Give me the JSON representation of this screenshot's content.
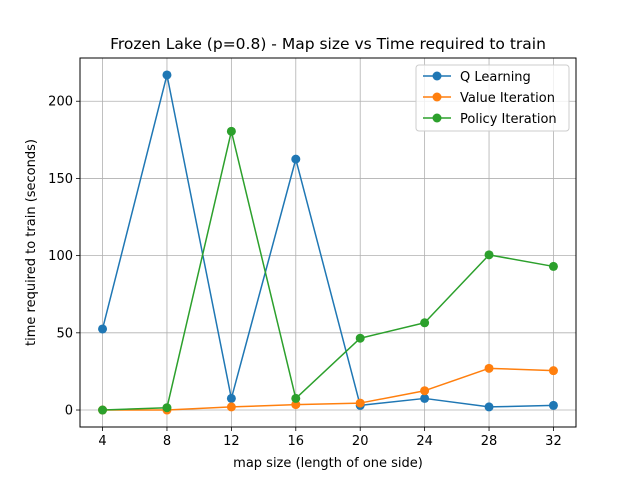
{
  "chart_data": {
    "type": "line",
    "title": "Frozen Lake (p=0.8) - Map size vs Time required to train",
    "xlabel": "map size (length of one side)",
    "ylabel": "time required to train (seconds)",
    "x": [
      4,
      8,
      12,
      16,
      20,
      24,
      28,
      32
    ],
    "xticks": [
      4,
      8,
      12,
      16,
      20,
      24,
      28,
      32
    ],
    "yticks": [
      0,
      50,
      100,
      150,
      200
    ],
    "xlim": [
      2.6,
      33.4
    ],
    "ylim": [
      -11,
      228
    ],
    "grid": true,
    "legend_position": "top-right",
    "series": [
      {
        "name": "Q Learning",
        "color": "#1f77b4",
        "values": [
          52.5,
          217,
          7.5,
          162.5,
          3,
          7.5,
          2,
          3
        ]
      },
      {
        "name": "Value Iteration",
        "color": "#ff7f0e",
        "values": [
          0,
          0,
          2,
          3.5,
          4.5,
          12.5,
          27,
          25.5
        ]
      },
      {
        "name": "Policy Iteration",
        "color": "#2ca02c",
        "values": [
          0,
          1.5,
          180.5,
          7.5,
          46.5,
          56.5,
          100.5,
          93
        ]
      }
    ]
  }
}
